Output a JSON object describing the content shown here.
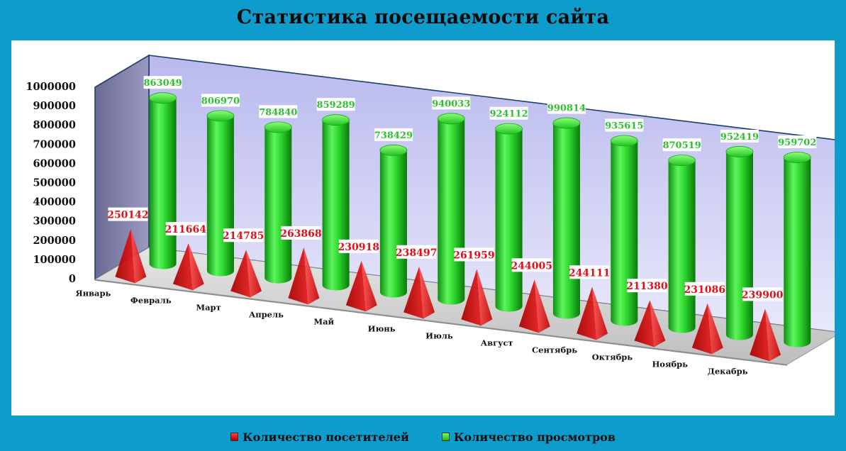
{
  "title": "Статистика посещаемости сайта",
  "colors": {
    "frame": "#0e9ccd",
    "visitors": "#e8141a",
    "views": "#2bd02b",
    "visitors_label": "#e0101a",
    "views_label": "#2fc02f",
    "back_wall": "#c9c9f2"
  },
  "legend": {
    "visitors": "Количество посетителей",
    "views": "Количество просмотров"
  },
  "chart_data": {
    "type": "bar",
    "style": "3d",
    "categories": [
      "Январь",
      "Февраль",
      "Март",
      "Апрель",
      "Май",
      "Июнь",
      "Июль",
      "Август",
      "Сентябрь",
      "Октябрь",
      "Ноябрь",
      "Декабрь"
    ],
    "series": [
      {
        "name": "Количество посетителей",
        "shape": "pyramid",
        "values": [
          250142,
          211664,
          214785,
          263868,
          230918,
          238497,
          261959,
          244005,
          244111,
          211380,
          231086,
          239900
        ]
      },
      {
        "name": "Количество просмотров",
        "shape": "cylinder",
        "values": [
          863049,
          806970,
          784840,
          859289,
          738429,
          940033,
          924112,
          990814,
          935615,
          870519,
          952419,
          959702
        ]
      }
    ],
    "ylim": [
      0,
      1000000
    ],
    "yticks": [
      "0",
      "100000",
      "200000",
      "300000",
      "400000",
      "500000",
      "600000",
      "700000",
      "800000",
      "900000",
      "1000000"
    ],
    "grid": false,
    "legend_position": "bottom",
    "data_labels": true
  }
}
